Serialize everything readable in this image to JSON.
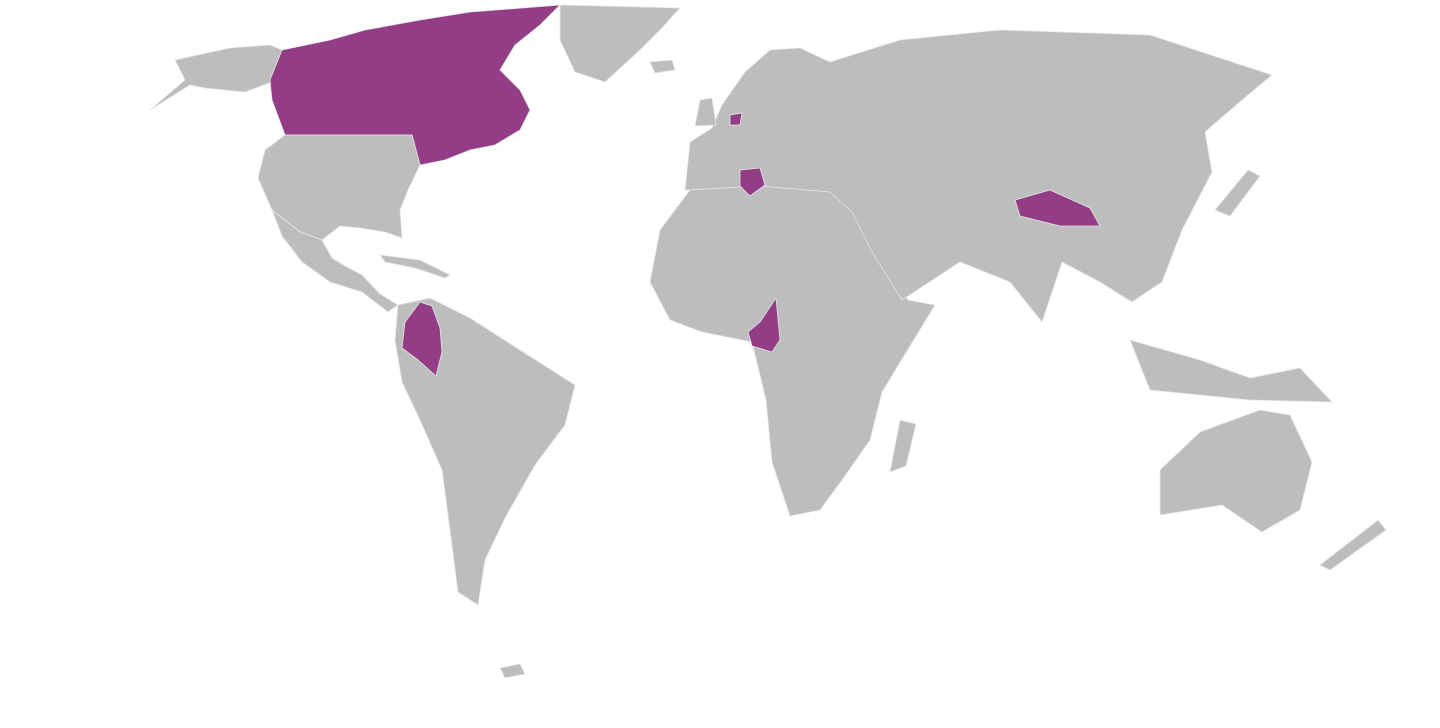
{
  "map": {
    "colors": {
      "background": "#ffffff",
      "land": "#bdbdbd",
      "highlight": "#943d87",
      "border": "#e6e6e6"
    },
    "highlighted_regions": [
      "canada",
      "netherlands",
      "greece",
      "tibet",
      "colombia",
      "cameroon"
    ]
  }
}
